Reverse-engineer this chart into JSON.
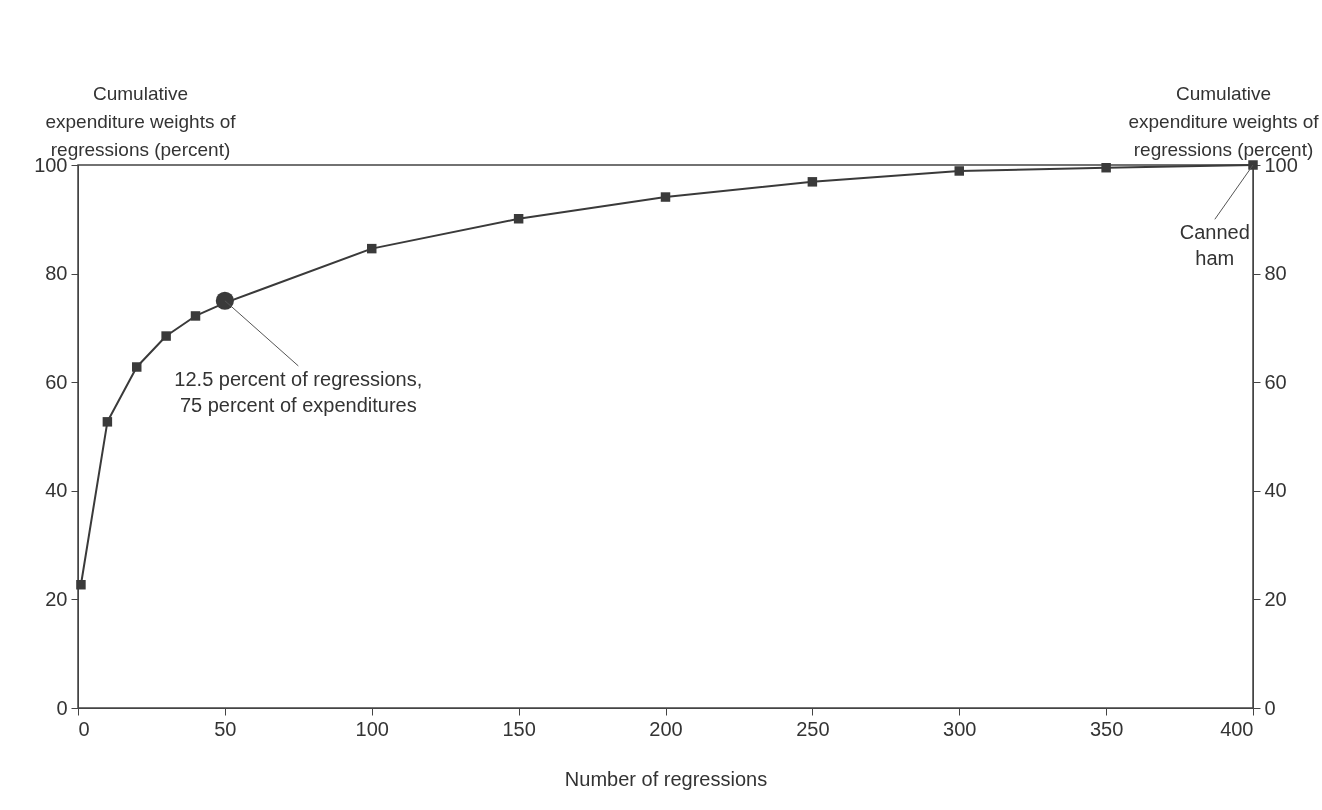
{
  "chart_data": {
    "type": "line",
    "xlabel": "Number of regressions",
    "ylabel": "Cumulative\nexpenditure weights of\nregressions (percent)",
    "y2label": "Cumulative\nexpenditure weights of\nregressions (percent)",
    "x": [
      1,
      10,
      20,
      30,
      40,
      50,
      100,
      150,
      200,
      250,
      300,
      350,
      400
    ],
    "series": [
      {
        "color": "#3a3a3a",
        "marker": "square",
        "values": [
          22.7,
          52.7,
          62.8,
          68.5,
          72.2,
          74.6,
          84.6,
          90.1,
          94.1,
          96.9,
          98.9,
          99.5,
          100
        ]
      },
      {
        "type": "scatter",
        "color": "#3a3a3a",
        "marker": "circle",
        "x": [
          50
        ],
        "values": [
          75
        ]
      }
    ],
    "xlim": [
      0,
      400
    ],
    "xticks": [
      0,
      50,
      100,
      150,
      200,
      250,
      300,
      350,
      400
    ],
    "ylim": [
      0,
      100
    ],
    "yticks": [
      0,
      20,
      40,
      60,
      80,
      100
    ],
    "y2lim": [
      0,
      100
    ],
    "y2ticks": [
      0,
      20,
      40,
      60,
      80,
      100
    ],
    "grid": false,
    "annotations": [
      {
        "text": "12.5 percent of regressions,\n75 percent of expenditures",
        "x": 50,
        "y": 75
      },
      {
        "text": "Canned\nham",
        "x": 400,
        "y": 100
      }
    ]
  }
}
